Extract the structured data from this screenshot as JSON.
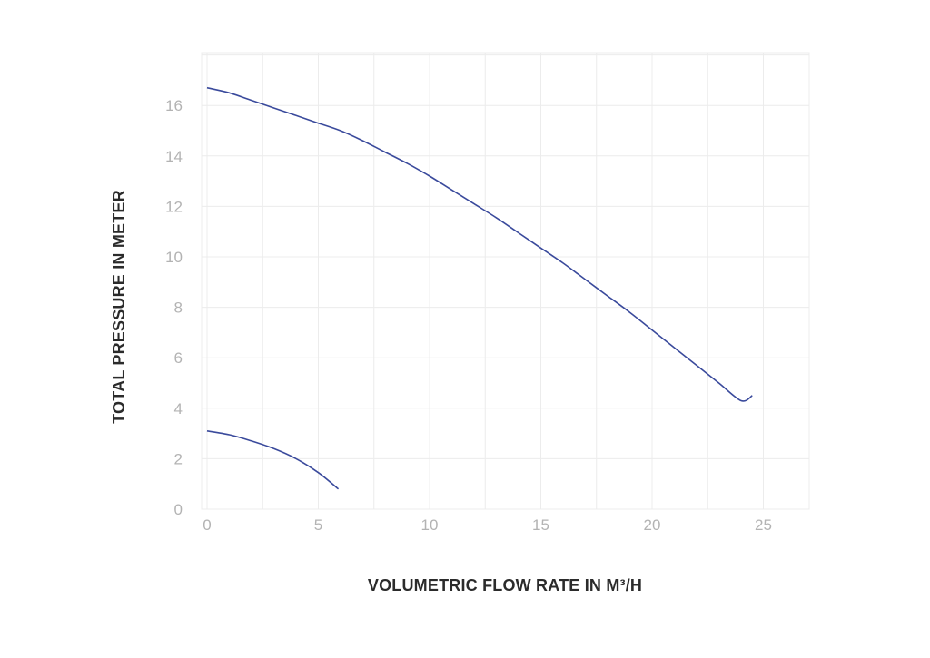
{
  "chart_data": {
    "type": "line",
    "title": "",
    "xlabel": "VOLUMETRIC FLOW RATE IN M³/H",
    "ylabel": "TOTAL PRESSURE IN METER",
    "xlim": [
      0,
      27
    ],
    "ylim": [
      0,
      18
    ],
    "xticks": [
      "0",
      "5",
      "10",
      "15",
      "20",
      "25"
    ],
    "yticks": [
      "0",
      "2",
      "4",
      "6",
      "8",
      "10",
      "12",
      "14",
      "16"
    ],
    "x_grid_step": 2.5,
    "y_grid_step": 2,
    "grid": true,
    "legend": "none",
    "colors": {
      "series": "#3a4a9c",
      "grid": "#ececec",
      "tick": "#b3b3b3",
      "axis_title": "#2b2b2b"
    },
    "series": [
      {
        "x": [
          0,
          1,
          2,
          3,
          4,
          5,
          6,
          7,
          8,
          9,
          10,
          11,
          12,
          13,
          14,
          15,
          16,
          17,
          18,
          19,
          20,
          21,
          22,
          23,
          24,
          24.5
        ],
        "y": [
          16.7,
          16.5,
          16.2,
          15.9,
          15.6,
          15.3,
          15.0,
          14.6,
          14.15,
          13.7,
          13.2,
          12.65,
          12.1,
          11.55,
          10.95,
          10.35,
          9.75,
          9.1,
          8.45,
          7.8,
          7.1,
          6.4,
          5.7,
          5.0,
          4.3,
          4.5
        ]
      },
      {
        "x": [
          0,
          1,
          2,
          3,
          4,
          5,
          5.9
        ],
        "y": [
          3.1,
          2.95,
          2.7,
          2.4,
          2.0,
          1.45,
          0.8
        ]
      }
    ]
  }
}
